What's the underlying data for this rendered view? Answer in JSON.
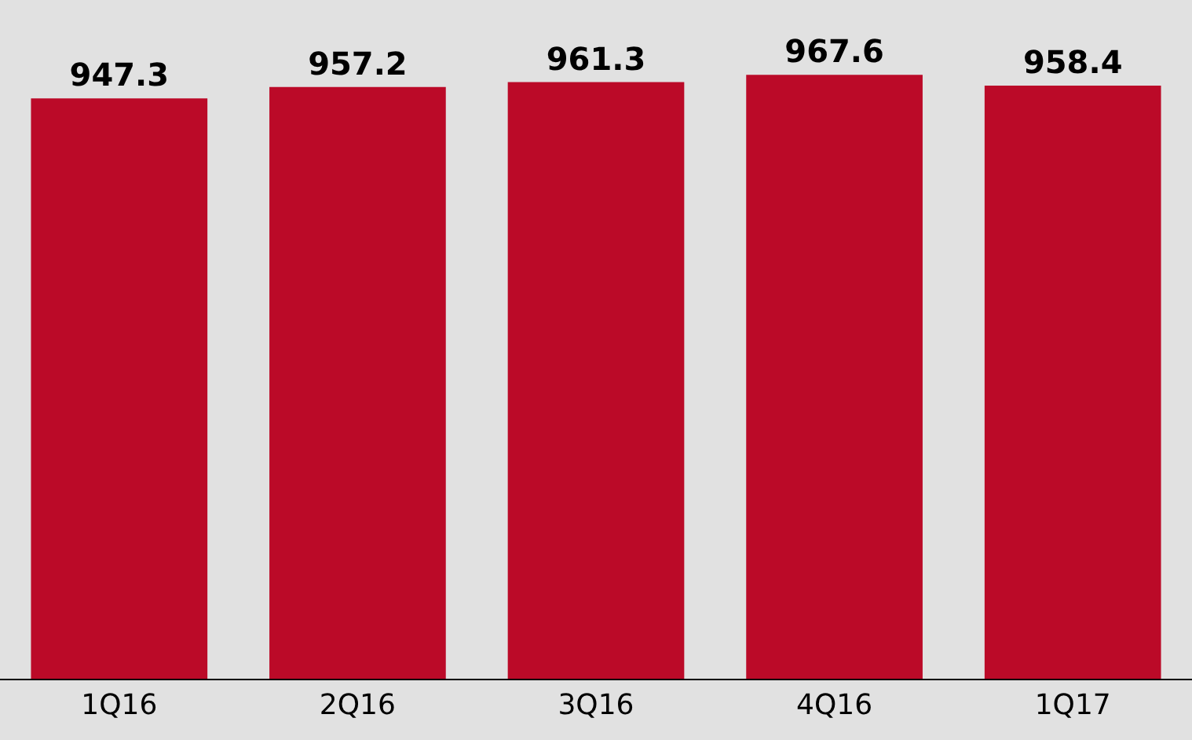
{
  "chart_data": {
    "type": "bar",
    "categories": [
      "1Q16",
      "2Q16",
      "3Q16",
      "4Q16",
      "1Q17"
    ],
    "values": [
      947.3,
      957.2,
      961.3,
      967.6,
      958.4
    ],
    "color": "#bb0a28",
    "ylim": [
      448,
      1032
    ],
    "data_labels": true
  }
}
